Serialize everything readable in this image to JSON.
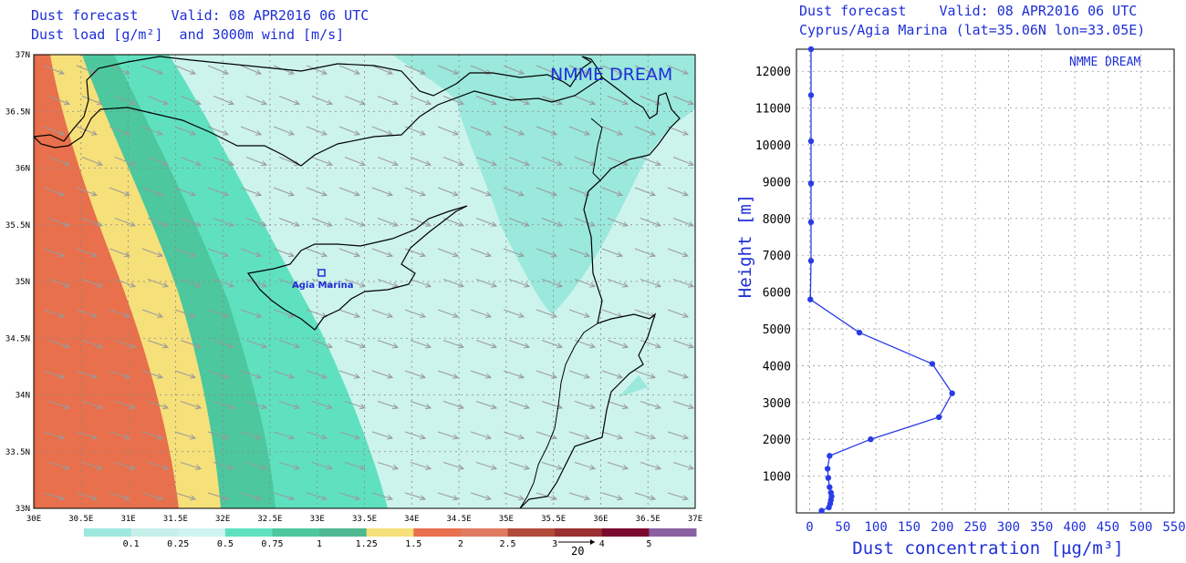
{
  "map_panel": {
    "title_line1": "Dust forecast    Valid: 08 APR2016 06 UTC",
    "title_line2": "Dust load [g/m²]  and 3000m wind [m/s]",
    "watermark": "NMME DREAM",
    "site_label": "Agia Marina",
    "lon_ticks": [
      "30E",
      "30.5E",
      "31E",
      "31.5E",
      "32E",
      "32.5E",
      "33E",
      "33.5E",
      "34E",
      "34.5E",
      "35E",
      "35.5E",
      "36E",
      "36.5E",
      "37E"
    ],
    "lat_ticks": [
      "37N",
      "36.5N",
      "36N",
      "35.5N",
      "35N",
      "34.5N",
      "34N",
      "33.5N",
      "33N"
    ],
    "colorbar_labels": [
      "0.1",
      "0.25",
      "0.5",
      "0.75",
      "1",
      "1.25",
      "1.5",
      "2",
      "2.5",
      "3",
      "4",
      "5"
    ],
    "colorbar_colors": [
      "#9ee8de",
      "#c7f0ea",
      "#cdf4ee",
      "#5fe1bf",
      "#4cc79e",
      "#4fb890",
      "#f6e07a",
      "#e8704c",
      "#e07a60",
      "#b04a3a",
      "#9a3030",
      "#7a0a30",
      "#8a60a0"
    ],
    "wind_ref_label": "20",
    "colors": {
      "text": "#1e2fd6",
      "arrow": "#9a9a9a",
      "coast": "#000000"
    }
  },
  "profile_panel": {
    "title_line1": "Dust forecast    Valid: 08 APR2016 06 UTC",
    "title_line2": "Cyprus/Agia Marina (lat=35.06N lon=33.05E)",
    "watermark": "NMME DREAM"
  },
  "chart_data": {
    "type": "line",
    "title": "Cyprus/Agia Marina (lat=35.06N lon=33.05E)",
    "xlabel": "Dust concentration [µg/m³]",
    "ylabel": "Height [m]",
    "xlim": [
      -20,
      550
    ],
    "ylim": [
      0,
      12600
    ],
    "x_ticks": [
      0,
      50,
      100,
      150,
      200,
      250,
      300,
      350,
      400,
      450,
      500,
      550
    ],
    "y_ticks": [
      1000,
      2000,
      3000,
      4000,
      5000,
      6000,
      7000,
      8000,
      9000,
      10000,
      11000,
      12000
    ],
    "grid": true,
    "series": [
      {
        "x": [
          18,
          29,
          31,
          32,
          33,
          32,
          30,
          28,
          27,
          30,
          92,
          195,
          215,
          185,
          75,
          1,
          2,
          2,
          2,
          2,
          2,
          2,
          2
        ],
        "y": [
          60,
          150,
          250,
          350,
          450,
          550,
          700,
          950,
          1200,
          1550,
          2000,
          2600,
          3250,
          4050,
          4900,
          5800,
          6850,
          7900,
          8950,
          10100,
          11350,
          12600,
          12700
        ]
      }
    ]
  }
}
